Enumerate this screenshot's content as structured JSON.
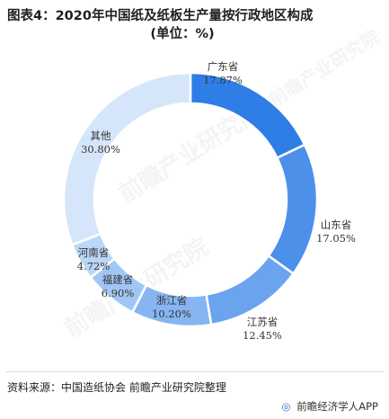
{
  "title_line1": "图表4：2020年中国纸及纸板生产量按行政地区构成",
  "title_line2": "(单位：%)",
  "source": "资料来源：中国造纸协会 前瞻产业研究院整理",
  "footer_brand": "前瞻经济学人APP",
  "watermark": "前瞻产业研究院",
  "chart_data": {
    "type": "pie",
    "donut": true,
    "categories": [
      "广东省",
      "山东省",
      "江苏省",
      "浙江省",
      "福建省",
      "河南省",
      "其他"
    ],
    "values": [
      17.87,
      17.05,
      12.45,
      10.2,
      6.9,
      4.72,
      30.8
    ],
    "value_labels": [
      "17.87%",
      "17.05%",
      "12.45%",
      "10.20%",
      "6.90%",
      "4.72%",
      "30.80%"
    ],
    "colors": [
      "#2f7ee6",
      "#4d90ea",
      "#6aa3ee",
      "#86b5f1",
      "#a2c6f4",
      "#bcd6f7",
      "#d6e6fa"
    ],
    "legend": "none"
  }
}
